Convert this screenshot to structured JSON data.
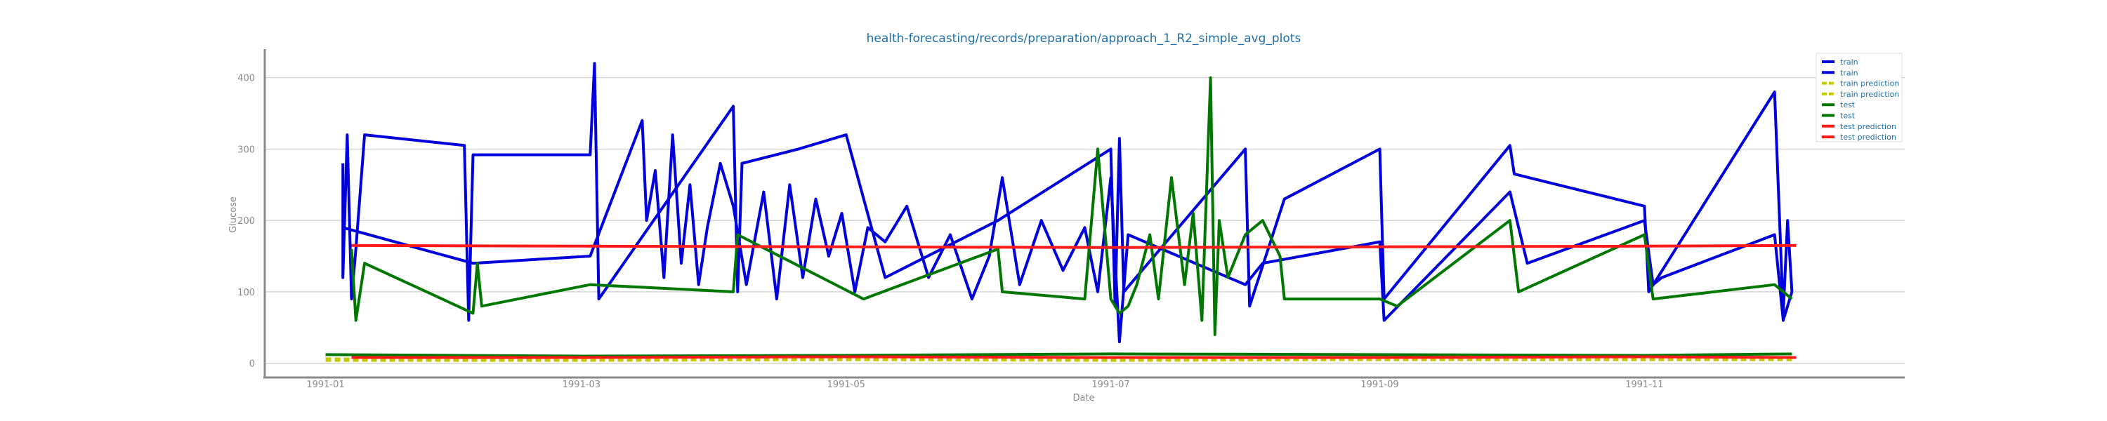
{
  "chart_data": {
    "type": "line",
    "title": "health-forecasting/records/preparation/approach_1_R2_simple_avg_plots",
    "xlabel": "Date",
    "ylabel": "Glucose",
    "xlim": [
      "1990-12-18",
      "1991-12-31"
    ],
    "ylim": [
      -20,
      440
    ],
    "x_ticks": [
      "1991-01",
      "1991-03",
      "1991-05",
      "1991-07",
      "1991-09",
      "1991-11"
    ],
    "y_ticks": [
      0,
      100,
      200,
      300,
      400
    ],
    "grid": "horizontal",
    "legend_position": "top-right",
    "series": [
      {
        "name": "train",
        "color": "#0000dd",
        "style": "solid",
        "x": [
          "1991-01-05",
          "1991-01-05",
          "1991-01-06",
          "1991-01-07",
          "1991-01-08",
          "1991-01-10",
          "1991-02-02",
          "1991-02-03",
          "1991-02-04",
          "1991-03-03",
          "1991-03-04",
          "1991-03-05",
          "1991-04-05",
          "1991-04-06",
          "1991-04-07",
          "1991-04-20",
          "1991-05-01",
          "1991-05-10",
          "1991-06-05",
          "1991-07-01",
          "1991-07-02",
          "1991-07-03",
          "1991-07-04",
          "1991-08-01",
          "1991-08-02",
          "1991-08-10",
          "1991-09-01",
          "1991-09-02",
          "1991-10-01",
          "1991-10-02",
          "1991-11-01",
          "1991-11-02",
          "1991-12-01",
          "1991-12-03",
          "1991-12-04",
          "1991-12-05"
        ],
        "values": [
          280,
          120,
          320,
          90,
          160,
          320,
          305,
          60,
          292,
          292,
          420,
          90,
          360,
          100,
          280,
          300,
          320,
          120,
          200,
          300,
          80,
          315,
          100,
          300,
          80,
          230,
          300,
          90,
          305,
          265,
          220,
          100,
          380,
          70,
          200,
          100
        ]
      },
      {
        "name": "train",
        "color": "#0000dd",
        "style": "solid",
        "x": [
          "1991-01-05",
          "1991-02-04",
          "1991-03-03",
          "1991-03-15",
          "1991-03-16",
          "1991-03-18",
          "1991-03-20",
          "1991-03-22",
          "1991-03-24",
          "1991-03-26",
          "1991-03-28",
          "1991-03-30",
          "1991-04-02",
          "1991-04-05",
          "1991-04-08",
          "1991-04-12",
          "1991-04-15",
          "1991-04-18",
          "1991-04-21",
          "1991-04-24",
          "1991-04-27",
          "1991-04-30",
          "1991-05-03",
          "1991-05-06",
          "1991-05-10",
          "1991-05-15",
          "1991-05-20",
          "1991-05-25",
          "1991-05-30",
          "1991-06-03",
          "1991-06-06",
          "1991-06-10",
          "1991-06-15",
          "1991-06-20",
          "1991-06-25",
          "1991-06-28",
          "1991-07-01",
          "1991-07-03",
          "1991-07-05",
          "1991-08-01",
          "1991-08-05",
          "1991-09-01",
          "1991-09-02",
          "1991-10-01",
          "1991-10-05",
          "1991-11-01",
          "1991-11-03",
          "1991-11-05",
          "1991-12-01",
          "1991-12-03",
          "1991-12-05"
        ],
        "values": [
          190,
          140,
          150,
          340,
          200,
          270,
          120,
          320,
          140,
          250,
          110,
          190,
          280,
          220,
          110,
          240,
          90,
          250,
          120,
          230,
          150,
          210,
          100,
          190,
          170,
          220,
          120,
          180,
          90,
          150,
          260,
          110,
          200,
          130,
          190,
          100,
          260,
          30,
          180,
          110,
          140,
          170,
          60,
          240,
          140,
          200,
          110,
          120,
          180,
          60,
          100
        ]
      },
      {
        "name": "train prediction",
        "color": "#c8c800",
        "style": "dashed",
        "x": [
          "1991-01-01",
          "1991-03-01",
          "1991-05-01",
          "1991-07-01",
          "1991-09-01",
          "1991-11-01",
          "1991-12-05"
        ],
        "values": [
          6,
          5,
          6,
          5,
          6,
          6,
          6
        ]
      },
      {
        "name": "train prediction",
        "color": "#c8c800",
        "style": "dashed",
        "x": [
          "1991-01-01",
          "1991-03-01",
          "1991-05-01",
          "1991-07-01",
          "1991-09-01",
          "1991-11-01",
          "1991-12-05"
        ],
        "values": [
          4,
          4,
          5,
          4,
          5,
          5,
          5
        ]
      },
      {
        "name": "test",
        "color": "#007700",
        "style": "solid",
        "x": [
          "1991-01-07",
          "1991-01-08",
          "1991-01-10",
          "1991-02-04",
          "1991-02-05",
          "1991-02-06",
          "1991-03-03",
          "1991-04-05",
          "1991-04-06",
          "1991-05-05",
          "1991-06-05",
          "1991-06-06",
          "1991-06-25",
          "1991-06-28",
          "1991-07-01",
          "1991-07-03",
          "1991-07-05",
          "1991-07-07",
          "1991-07-10",
          "1991-07-12",
          "1991-07-15",
          "1991-07-18",
          "1991-07-20",
          "1991-07-22",
          "1991-07-24",
          "1991-07-25",
          "1991-07-26",
          "1991-07-28",
          "1991-08-01",
          "1991-08-05",
          "1991-08-09",
          "1991-08-10",
          "1991-09-01",
          "1991-09-05",
          "1991-10-01",
          "1991-10-03",
          "1991-11-01",
          "1991-11-03",
          "1991-12-01",
          "1991-12-05"
        ],
        "values": [
          160,
          60,
          140,
          70,
          140,
          80,
          110,
          100,
          180,
          90,
          160,
          100,
          90,
          300,
          90,
          70,
          80,
          110,
          180,
          90,
          260,
          110,
          210,
          60,
          400,
          40,
          200,
          120,
          180,
          200,
          150,
          90,
          90,
          80,
          200,
          100,
          180,
          90,
          110,
          90
        ]
      },
      {
        "name": "test",
        "color": "#007700",
        "style": "solid",
        "x": [
          "1991-01-01",
          "1991-03-01",
          "1991-05-01",
          "1991-07-01",
          "1991-09-01",
          "1991-11-01",
          "1991-12-05"
        ],
        "values": [
          12,
          10,
          11,
          13,
          12,
          11,
          13
        ]
      },
      {
        "name": "test prediction",
        "color": "#ff1a1a",
        "style": "solid",
        "x": [
          "1991-01-07",
          "1991-03-01",
          "1991-05-01",
          "1991-07-01",
          "1991-09-01",
          "1991-11-01",
          "1991-12-06"
        ],
        "values": [
          165,
          164,
          163,
          162,
          163,
          164,
          165
        ]
      },
      {
        "name": "test prediction",
        "color": "#ff1a1a",
        "style": "solid",
        "x": [
          "1991-01-07",
          "1991-03-01",
          "1991-05-01",
          "1991-07-01",
          "1991-09-01",
          "1991-11-01",
          "1991-12-06"
        ],
        "values": [
          8,
          8,
          9,
          8,
          8,
          9,
          8
        ]
      }
    ]
  }
}
